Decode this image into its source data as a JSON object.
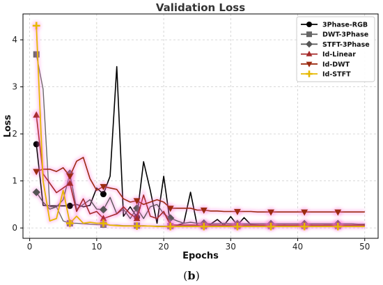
{
  "caption": {
    "open": "(",
    "letter": "b",
    "close": ")"
  },
  "chart_data": {
    "type": "line",
    "title": "Validation Loss",
    "xlabel": "Epochs",
    "ylabel": "Loss",
    "xlim": [
      -1,
      52
    ],
    "ylim": [
      -0.22,
      4.55
    ],
    "xticks": [
      0,
      10,
      20,
      30,
      40,
      50
    ],
    "yticks": [
      0,
      1,
      2,
      3,
      4
    ],
    "grid": true,
    "legend_position": "top-right",
    "series": [
      {
        "name": "3Phase-RGB",
        "color": "#000000",
        "marker": "circle",
        "width": 1.6,
        "highlight": false,
        "x": [
          1,
          2,
          3,
          4,
          5,
          6,
          7,
          8,
          9,
          10,
          11,
          12,
          13,
          14,
          15,
          16,
          17,
          18,
          19,
          20,
          21,
          22,
          23,
          24,
          25,
          26,
          27,
          28,
          29,
          30,
          31,
          32,
          33,
          34,
          35,
          36,
          37,
          38,
          39,
          40,
          41,
          42,
          43,
          44,
          45,
          46,
          47,
          48,
          49,
          50
        ],
        "y": [
          1.78,
          0.48,
          0.47,
          0.47,
          0.47,
          0.47,
          0.5,
          0.45,
          0.48,
          0.85,
          0.72,
          1.1,
          3.43,
          0.25,
          0.45,
          0.23,
          1.41,
          0.8,
          0.1,
          1.1,
          0.07,
          0.06,
          0.1,
          0.76,
          0.05,
          0.06,
          0.08,
          0.18,
          0.06,
          0.24,
          0.06,
          0.22,
          0.07,
          0.06,
          0.05,
          0.06,
          0.05,
          0.06,
          0.05,
          0.06,
          0.05,
          0.06,
          0.05,
          0.06,
          0.06,
          0.05,
          0.05,
          0.05,
          0.05,
          0.05
        ],
        "marker_x": [
          1,
          6,
          11,
          16
        ]
      },
      {
        "name": "DWT-3Phase",
        "color": "#666666",
        "marker": "square",
        "width": 1.4,
        "highlight": false,
        "x": [
          1,
          2,
          3,
          4,
          5,
          6,
          7,
          8,
          9,
          10,
          11,
          12,
          13,
          14,
          15,
          16,
          17,
          18,
          19,
          20,
          21,
          22,
          23,
          24,
          25,
          26,
          27,
          28,
          29,
          30,
          31,
          32,
          33,
          34,
          35,
          36,
          37,
          38,
          39,
          40,
          41,
          42,
          43,
          44,
          45,
          46,
          47,
          48,
          49,
          50
        ],
        "y": [
          3.69,
          2.95,
          0.45,
          0.45,
          0.15,
          0.1,
          0.1,
          0.09,
          0.08,
          0.07,
          0.07,
          0.06,
          0.06,
          0.05,
          0.05,
          0.05,
          0.05,
          0.04,
          0.04,
          0.04,
          0.04,
          0.04,
          0.04,
          0.04,
          0.04,
          0.04,
          0.04,
          0.04,
          0.04,
          0.04,
          0.04,
          0.04,
          0.04,
          0.04,
          0.04,
          0.04,
          0.04,
          0.04,
          0.04,
          0.04,
          0.04,
          0.04,
          0.04,
          0.04,
          0.04,
          0.04,
          0.04,
          0.04,
          0.04,
          0.04
        ],
        "marker_x": [
          1,
          6,
          11,
          16,
          21,
          26,
          31,
          36,
          41,
          46
        ]
      },
      {
        "name": "STFT-3Phase",
        "color": "#555555",
        "marker": "diamond",
        "width": 1.4,
        "highlight": true,
        "x": [
          1,
          2,
          3,
          4,
          5,
          6,
          7,
          8,
          9,
          10,
          11,
          12,
          13,
          14,
          15,
          16,
          17,
          18,
          19,
          20,
          21,
          22,
          23,
          24,
          25,
          26,
          27,
          28,
          29,
          30,
          31,
          32,
          33,
          34,
          35,
          36,
          37,
          38,
          39,
          40,
          41,
          42,
          43,
          44,
          45,
          46,
          47,
          48,
          49,
          50
        ],
        "y": [
          0.76,
          0.55,
          0.4,
          0.45,
          0.6,
          1.16,
          0.4,
          0.5,
          0.6,
          0.4,
          0.39,
          0.65,
          0.3,
          0.4,
          0.2,
          0.42,
          0.2,
          0.45,
          0.5,
          0.3,
          0.21,
          0.15,
          0.1,
          0.12,
          0.1,
          0.1,
          0.09,
          0.09,
          0.1,
          0.09,
          0.09,
          0.09,
          0.09,
          0.09,
          0.09,
          0.09,
          0.09,
          0.09,
          0.09,
          0.09,
          0.09,
          0.09,
          0.09,
          0.09,
          0.09,
          0.09,
          0.09,
          0.09,
          0.08,
          0.08
        ],
        "marker_x": [
          1,
          6,
          11,
          16,
          21,
          26,
          31,
          36,
          41,
          46
        ]
      },
      {
        "name": "Id-Linear",
        "color": "#a52a2a",
        "marker": "triangle-up",
        "width": 1.6,
        "highlight": true,
        "x": [
          1,
          2,
          3,
          4,
          5,
          6,
          7,
          8,
          9,
          10,
          11,
          12,
          13,
          14,
          15,
          16,
          17,
          18,
          19,
          20,
          21,
          22,
          23,
          24,
          25,
          26,
          27,
          28,
          29,
          30,
          31,
          32,
          33,
          34,
          35,
          36,
          37,
          38,
          39,
          40,
          41,
          42,
          43,
          44,
          45,
          46,
          47,
          48,
          49,
          50
        ],
        "y": [
          2.4,
          1.15,
          0.95,
          0.75,
          0.85,
          0.95,
          0.35,
          0.62,
          0.3,
          0.35,
          0.2,
          0.25,
          0.3,
          0.45,
          0.3,
          0.2,
          0.7,
          0.25,
          0.2,
          0.35,
          0.06,
          0.06,
          0.06,
          0.06,
          0.06,
          0.06,
          0.06,
          0.06,
          0.06,
          0.06,
          0.06,
          0.06,
          0.06,
          0.06,
          0.06,
          0.06,
          0.06,
          0.06,
          0.06,
          0.06,
          0.06,
          0.06,
          0.06,
          0.06,
          0.06,
          0.06,
          0.06,
          0.06,
          0.06,
          0.06
        ],
        "marker_x": [
          1,
          6,
          11,
          16,
          21,
          26,
          31,
          36,
          41,
          46
        ]
      },
      {
        "name": "Id-DWT",
        "color": "#9b2a10",
        "marker": "triangle-down",
        "width": 1.6,
        "highlight": true,
        "x": [
          1,
          2,
          3,
          4,
          5,
          6,
          7,
          8,
          9,
          10,
          11,
          12,
          13,
          14,
          15,
          16,
          17,
          18,
          19,
          20,
          21,
          22,
          23,
          24,
          25,
          26,
          27,
          28,
          29,
          30,
          31,
          32,
          33,
          34,
          35,
          36,
          37,
          38,
          39,
          40,
          41,
          42,
          43,
          44,
          45,
          46,
          47,
          48,
          49,
          50
        ],
        "y": [
          1.2,
          1.25,
          1.25,
          1.2,
          1.28,
          1.1,
          1.42,
          1.5,
          1.05,
          0.8,
          0.88,
          0.85,
          0.82,
          0.62,
          0.55,
          0.58,
          0.5,
          0.55,
          0.6,
          0.55,
          0.42,
          0.42,
          0.42,
          0.42,
          0.38,
          0.38,
          0.36,
          0.36,
          0.35,
          0.35,
          0.35,
          0.35,
          0.35,
          0.34,
          0.34,
          0.34,
          0.34,
          0.34,
          0.34,
          0.34,
          0.34,
          0.34,
          0.34,
          0.34,
          0.34,
          0.34,
          0.34,
          0.34,
          0.34,
          0.34
        ],
        "marker_x": [
          1,
          6,
          11,
          16,
          21,
          26,
          31,
          36,
          41,
          46
        ]
      },
      {
        "name": "Id-STFT",
        "color": "#e6b800",
        "marker": "plus",
        "width": 1.8,
        "highlight": true,
        "x": [
          1,
          2,
          3,
          4,
          5,
          6,
          7,
          8,
          9,
          10,
          11,
          12,
          13,
          14,
          15,
          16,
          17,
          18,
          19,
          20,
          21,
          22,
          23,
          24,
          25,
          26,
          27,
          28,
          29,
          30,
          31,
          32,
          33,
          34,
          35,
          36,
          37,
          38,
          39,
          40,
          41,
          42,
          43,
          44,
          45,
          46,
          47,
          48,
          49,
          50
        ],
        "y": [
          4.3,
          1.0,
          0.15,
          0.2,
          0.8,
          0.1,
          0.25,
          0.1,
          0.12,
          0.1,
          0.1,
          0.06,
          0.05,
          0.04,
          0.04,
          0.04,
          0.04,
          0.04,
          0.03,
          0.03,
          0.03,
          0.03,
          0.03,
          0.03,
          0.03,
          0.03,
          0.03,
          0.03,
          0.03,
          0.03,
          0.03,
          0.03,
          0.03,
          0.03,
          0.03,
          0.03,
          0.03,
          0.03,
          0.03,
          0.03,
          0.03,
          0.03,
          0.03,
          0.03,
          0.03,
          0.03,
          0.03,
          0.03,
          0.03,
          0.03
        ],
        "marker_x": [
          1,
          6,
          11,
          16,
          21,
          26,
          31,
          36,
          41,
          46
        ]
      }
    ]
  }
}
